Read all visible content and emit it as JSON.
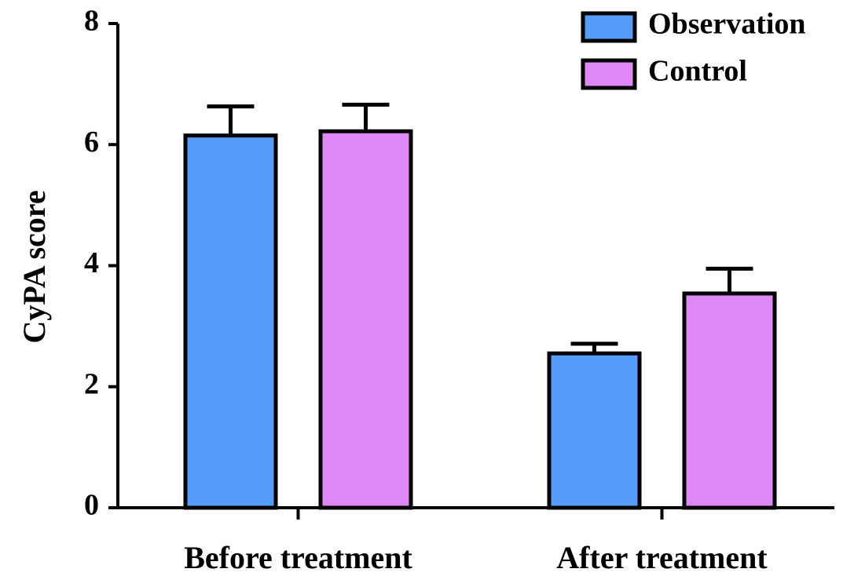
{
  "chart_data": {
    "type": "bar",
    "y_label": "CyPA score",
    "categories": [
      "Before treatment",
      "After treatment"
    ],
    "series": [
      {
        "name": "Observation",
        "color": "#559df8",
        "values": [
          6.15,
          2.55
        ],
        "errors": [
          0.48,
          0.16
        ]
      },
      {
        "name": "Control",
        "color": "#dd88f5",
        "values": [
          6.22,
          3.54
        ],
        "errors": [
          0.44,
          0.41
        ]
      }
    ],
    "ylim": [
      0,
      8
    ],
    "yticks": [
      0,
      2,
      4,
      6,
      8
    ],
    "legend": "top-right"
  }
}
